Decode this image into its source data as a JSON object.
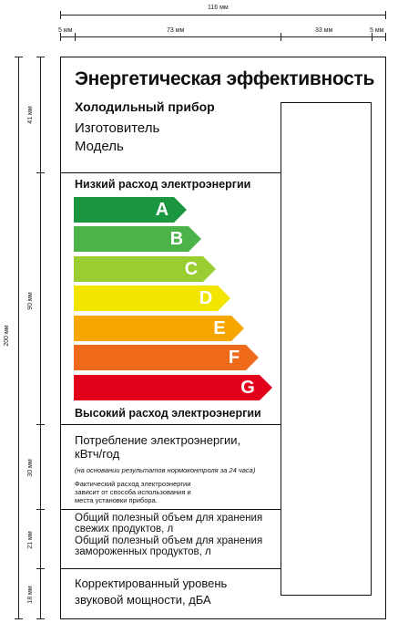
{
  "dimensions": {
    "total_width": "116 мм",
    "left_margin": "5 мм",
    "main_column": "73 мм",
    "right_column": "33 мм",
    "right_margin": "5 мм",
    "total_height": "200 мм",
    "section_1": "41 мм",
    "section_2": "90 мм",
    "section_3": "30 мм",
    "section_4": "21 мм",
    "section_5": "18 мм"
  },
  "label": {
    "title": "Энергетическая эффективность",
    "appliance": "Холодильный прибор",
    "manufacturer": "Изготовитель",
    "model": "Модель",
    "low_consumption": "Низкий расход электроэнергии",
    "high_consumption": "Высокий расход электроэнергии",
    "classes": [
      {
        "letter": "A",
        "color": "#1a9641"
      },
      {
        "letter": "B",
        "color": "#4bb34a"
      },
      {
        "letter": "C",
        "color": "#9acd32"
      },
      {
        "letter": "D",
        "color": "#f2e600"
      },
      {
        "letter": "E",
        "color": "#f7a600"
      },
      {
        "letter": "F",
        "color": "#ee6a1a"
      },
      {
        "letter": "G",
        "color": "#e2001a"
      }
    ],
    "consumption_line1": "Потребление электроэнергии,",
    "consumption_line2": "кВтч/год",
    "consumption_note": "(на основании результатов нормоконтроля за 24 часа)",
    "actual_line1": "Фактический расход электроэнергии",
    "actual_line2": "зависит от способа использования и",
    "actual_line3": "места установки прибора.",
    "fresh_line1": "Общий полезный объем для хранения",
    "fresh_line2": "свежих продуктов, л",
    "frozen_line1": "Общий полезный объем для хранения",
    "frozen_line2": "замороженных продуктов, л",
    "noise_line1": "Корректированный уровень",
    "noise_line2": "звуковой мощности, дБА"
  }
}
